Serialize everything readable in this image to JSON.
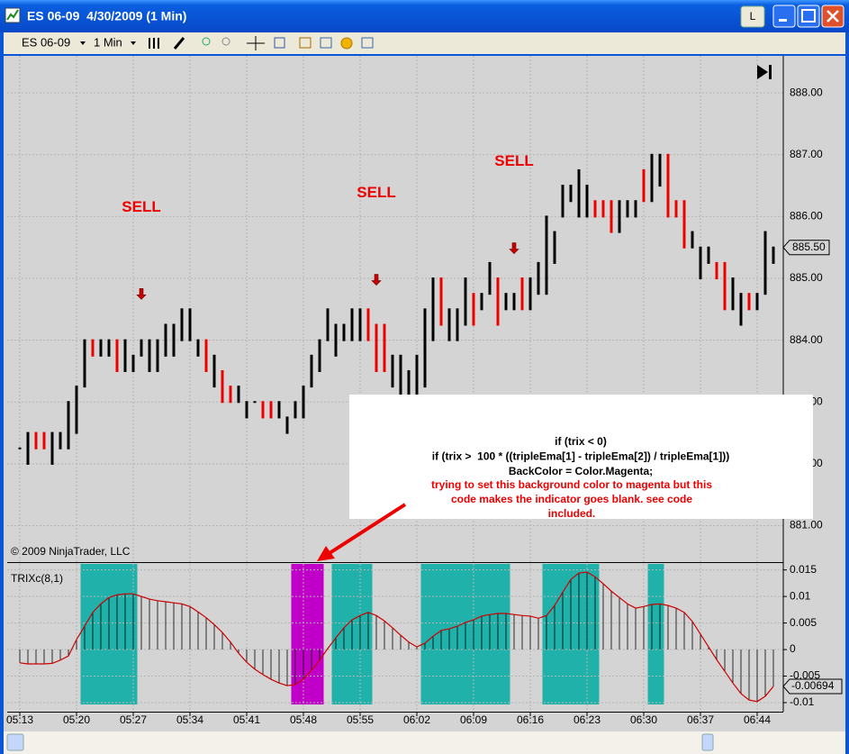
{
  "window": {
    "title": "ES 06-09  4/30/2009 (1 Min)",
    "button_l": "L"
  },
  "toolbar": {
    "instrument": "ES 06-09",
    "interval": "1 Min"
  },
  "copyright": "© 2009 NinjaTrader, LLC",
  "note": {
    "code_lines": [
      "if (trix < 0)",
      "if (trix >  100 * ((tripleEma[1] - tripleEma[2]) / tripleEma[1]))",
      "BackColor = Color.Magenta;"
    ],
    "comment_lines": [
      "trying to set this background color to magenta but this",
      "code makes the indicator goes blank. see code",
      "included."
    ]
  },
  "chart_data": [
    {
      "type": "hilo",
      "high": [
        882.25,
        882.5,
        882.5,
        882.5,
        882.5,
        882.5,
        883,
        883.25,
        884,
        884,
        884,
        884,
        884,
        884,
        883.75,
        884,
        884,
        884,
        884.25,
        884.25,
        884.5,
        884.5,
        884,
        884,
        883.75,
        883.5,
        883.25,
        883.25,
        883,
        883,
        883,
        883,
        883,
        882.75,
        883,
        883.25,
        883.75,
        884,
        884.5,
        884.25,
        884.25,
        884.5,
        884.5,
        884.5,
        884.25,
        884.25,
        883.75,
        883.75,
        883.5,
        883.75,
        884.5,
        885,
        885,
        884.5,
        884.5,
        885,
        884.75,
        884.75,
        885.25,
        885,
        884.75,
        884.75,
        885,
        885,
        885.25,
        886,
        885.75,
        886.5,
        886.5,
        886.75,
        886.5,
        886.25,
        886.25,
        886.25,
        886.25,
        886.25,
        886.25,
        886.75,
        887,
        887,
        887,
        886.25,
        886.25,
        885.75,
        885.5,
        885.5,
        885.25,
        885.25,
        885,
        884.75,
        884.75,
        884.75,
        885.75,
        885.5
      ],
      "low": [
        882.25,
        882,
        882.25,
        882.25,
        882,
        882.25,
        882.25,
        882.5,
        883.25,
        883.75,
        883.75,
        883.75,
        883.5,
        883.5,
        883.5,
        883.75,
        883.5,
        883.5,
        883.75,
        883.75,
        884,
        884,
        883.75,
        883.5,
        883.25,
        883,
        883,
        883,
        882.75,
        883,
        882.75,
        882.75,
        882.75,
        882.5,
        882.75,
        882.75,
        883.25,
        883.5,
        884,
        883.75,
        884,
        884,
        884,
        884,
        883.5,
        883.5,
        883.25,
        883,
        883,
        883,
        883.25,
        884,
        884.25,
        884,
        884,
        884.25,
        884.25,
        884.5,
        884.75,
        884.25,
        884.5,
        884.5,
        884.5,
        884.5,
        884.75,
        884.75,
        885.25,
        886,
        886.25,
        886,
        886,
        886,
        886,
        885.75,
        885.75,
        886,
        886,
        886.25,
        886.25,
        886.5,
        886,
        886,
        885.5,
        885.5,
        885,
        885.25,
        885,
        884.5,
        884.5,
        884.25,
        884.5,
        884.5,
        884.75,
        885.25
      ],
      "colors": [
        "#000",
        "#000",
        "#e00",
        "#e00",
        "#000",
        "#000",
        "#000",
        "#000",
        "#000",
        "#e00",
        "#000",
        "#000",
        "#e00",
        "#000",
        "#000",
        "#000",
        "#000",
        "#000",
        "#000",
        "#000",
        "#000",
        "#000",
        "#000",
        "#e00",
        "#000",
        "#e00",
        "#e00",
        "#000",
        "#000",
        "#000",
        "#e00",
        "#e00",
        "#000",
        "#000",
        "#000",
        "#000",
        "#000",
        "#000",
        "#000",
        "#000",
        "#000",
        "#000",
        "#000",
        "#e00",
        "#e00",
        "#e00",
        "#000",
        "#000",
        "#000",
        "#000",
        "#000",
        "#000",
        "#e00",
        "#000",
        "#000",
        "#000",
        "#e00",
        "#000",
        "#000",
        "#e00",
        "#000",
        "#000",
        "#e00",
        "#000",
        "#000",
        "#000",
        "#000",
        "#000",
        "#000",
        "#000",
        "#000",
        "#e00",
        "#e00",
        "#e00",
        "#000",
        "#000",
        "#000",
        "#e00",
        "#000",
        "#000",
        "#e00",
        "#e00",
        "#e00",
        "#000",
        "#000",
        "#000",
        "#e00",
        "#e00",
        "#000",
        "#000",
        "#e00",
        "#000",
        "#000",
        "#000"
      ],
      "xticks": [
        {
          "value": 0,
          "label": "05:13"
        },
        {
          "value": 7,
          "label": "05:20"
        },
        {
          "value": 14,
          "label": "05:27"
        },
        {
          "value": 21,
          "label": "05:34"
        },
        {
          "value": 28,
          "label": "05:41"
        },
        {
          "value": 35,
          "label": "05:48"
        },
        {
          "value": 42,
          "label": "05:55"
        },
        {
          "value": 49,
          "label": "06:02"
        },
        {
          "value": 56,
          "label": "06:09"
        },
        {
          "value": 63,
          "label": "06:16"
        },
        {
          "value": 70,
          "label": "06:23"
        },
        {
          "value": 77,
          "label": "06:30"
        },
        {
          "value": 84,
          "label": "06:37"
        },
        {
          "value": 91,
          "label": "06:44"
        }
      ],
      "ylim": [
        880.41,
        888.6
      ],
      "yticks": [
        {
          "value": 881,
          "label": "881.00"
        },
        {
          "value": 882,
          "label": "882.00"
        },
        {
          "value": 883,
          "label": "883.00"
        },
        {
          "value": 884,
          "label": "884.00"
        },
        {
          "value": 885,
          "label": "885.00"
        },
        {
          "value": 886,
          "label": "886.00"
        },
        {
          "value": 887,
          "label": "887.00"
        },
        {
          "value": 888,
          "label": "888.00"
        }
      ],
      "last_value": {
        "value": 885.5,
        "label": "885.50"
      },
      "signals": [
        {
          "label": "SELL",
          "bar": 15,
          "price": 884.69
        },
        {
          "label": "SELL",
          "bar": 44,
          "price": 884.92
        },
        {
          "label": "SELL",
          "bar": 61,
          "price": 885.43
        }
      ],
      "grid": true
    },
    {
      "type": "histogram-line",
      "title": "TRIXc(8,1)",
      "color": "#cc0000",
      "values": [
        -0.0025,
        -0.0027,
        -0.0027,
        -0.0027,
        -0.0026,
        -0.002,
        -0.0012,
        0.0019,
        0.0044,
        0.007,
        0.0086,
        0.0098,
        0.0103,
        0.0105,
        0.0105,
        0.01,
        0.0095,
        0.0092,
        0.009,
        0.0088,
        0.0086,
        0.0081,
        0.0071,
        0.006,
        0.0047,
        0.0032,
        0.0014,
        -0.0007,
        -0.0024,
        -0.0037,
        -0.0047,
        -0.0056,
        -0.0063,
        -0.0068,
        -0.0066,
        -0.0056,
        -0.0039,
        -0.002,
        0.0002,
        0.0022,
        0.0041,
        0.0056,
        0.0064,
        0.007,
        0.0064,
        0.0054,
        0.0041,
        0.0027,
        0.0014,
        0.0005,
        0.0012,
        0.0025,
        0.0036,
        0.0039,
        0.0044,
        0.0051,
        0.0056,
        0.0063,
        0.0066,
        0.0068,
        0.0068,
        0.0066,
        0.0064,
        0.0063,
        0.0059,
        0.0064,
        0.0083,
        0.0108,
        0.0132,
        0.0144,
        0.0146,
        0.0137,
        0.0124,
        0.011,
        0.0098,
        0.0086,
        0.0078,
        0.0081,
        0.0085,
        0.0086,
        0.0083,
        0.0078,
        0.007,
        0.0053,
        0.0029,
        0.0005,
        -0.0019,
        -0.0041,
        -0.0063,
        -0.0083,
        -0.0095,
        -0.0098,
        -0.0088,
        -0.00694
      ],
      "ylim": [
        -0.0117,
        0.0163
      ],
      "yticks": [
        -0.01,
        -0.005,
        0,
        0.005,
        0.01,
        0.015
      ],
      "last_value": {
        "value": -0.00694,
        "label": "-0.00694"
      },
      "zones": [
        {
          "from": 8,
          "to": 14,
          "color": "#20b2aa"
        },
        {
          "from": 34,
          "to": 37,
          "color": "#c000c8"
        },
        {
          "from": 39,
          "to": 43,
          "color": "#20b2aa"
        },
        {
          "from": 50,
          "to": 60,
          "color": "#20b2aa"
        },
        {
          "from": 65,
          "to": 71,
          "color": "#20b2aa"
        },
        {
          "from": 78,
          "to": 79,
          "color": "#20b2aa"
        }
      ],
      "grid": true
    }
  ]
}
